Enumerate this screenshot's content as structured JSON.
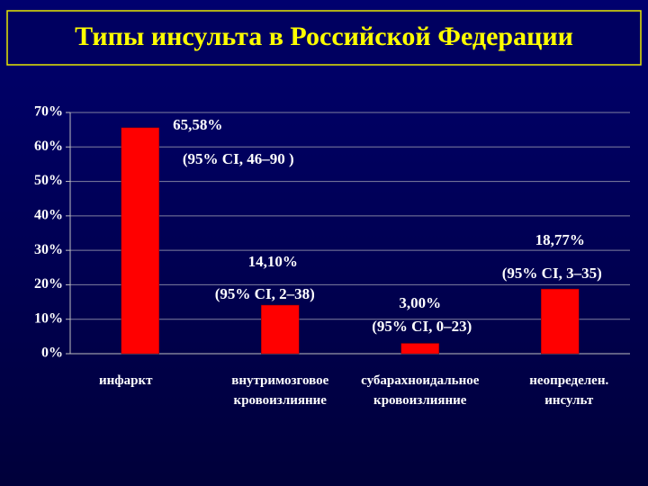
{
  "chart_data": {
    "type": "bar",
    "title": "Типы  инсульта в Российской Федерации",
    "categories": [
      "инфаркт",
      "внутримозговое кровоизлияние",
      "субарахноидальное кровоизлияние",
      "неопределен. инсульт"
    ],
    "values": [
      65.58,
      14.1,
      3.0,
      18.77
    ],
    "value_labels": [
      "65,58%",
      "14,10%",
      "3,00%",
      "18,77%"
    ],
    "annotations": [
      "(95% CI, 46–90 )",
      "(95% CI, 2–38)",
      "(95% CI, 0–23)",
      "(95% CI, 3–35)"
    ],
    "color": "#ff0000",
    "ylim": [
      0,
      70
    ],
    "yticks": [
      {
        "value": 0,
        "label": "0%"
      },
      {
        "value": 10,
        "label": "10%"
      },
      {
        "value": 20,
        "label": "20%"
      },
      {
        "value": 30,
        "label": "30%"
      },
      {
        "value": 40,
        "label": "40%"
      },
      {
        "value": 50,
        "label": "50%"
      },
      {
        "value": 60,
        "label": "60%"
      },
      {
        "value": 70,
        "label": "70%"
      }
    ],
    "grid": true
  }
}
